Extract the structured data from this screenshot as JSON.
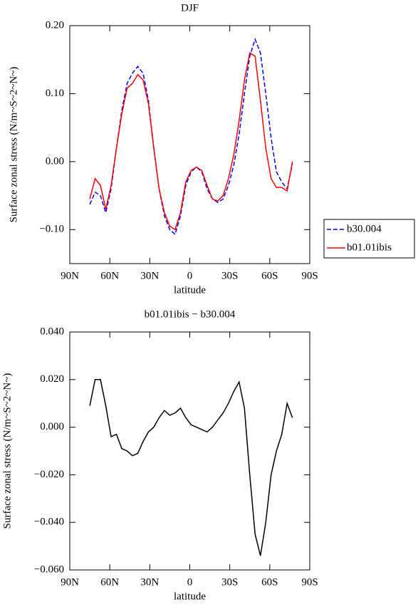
{
  "chart_data": [
    {
      "type": "line",
      "title": "DJF",
      "xlabel": "latitude",
      "ylabel": "Surface zonal stress (N/m~S~2~N~)",
      "x": [
        75,
        71,
        67,
        63,
        59,
        55,
        51,
        47,
        43,
        39,
        35,
        31,
        27,
        23,
        19,
        15,
        11,
        7,
        3,
        -1,
        -5,
        -9,
        -13,
        -17,
        -21,
        -25,
        -29,
        -33,
        -37,
        -41,
        -45,
        -49,
        -53,
        -57,
        -61,
        -65,
        -69,
        -73,
        -77
      ],
      "series": [
        {
          "name": "b30.004",
          "color": "#0000ff",
          "line_style": "dashed",
          "values": [
            -0.063,
            -0.045,
            -0.05,
            -0.075,
            -0.04,
            0.02,
            0.075,
            0.115,
            0.13,
            0.14,
            0.13,
            0.09,
            0.02,
            -0.04,
            -0.08,
            -0.1,
            -0.107,
            -0.08,
            -0.035,
            -0.015,
            -0.008,
            -0.015,
            -0.04,
            -0.055,
            -0.06,
            -0.055,
            -0.035,
            -0.005,
            0.04,
            0.1,
            0.155,
            0.18,
            0.16,
            0.1,
            0.035,
            -0.015,
            -0.03,
            -0.04,
            -0.003
          ]
        },
        {
          "name": "b01.01ibis",
          "color": "#ff0000",
          "line_style": "solid",
          "values": [
            -0.055,
            -0.025,
            -0.035,
            -0.07,
            -0.035,
            0.02,
            0.07,
            0.108,
            0.115,
            0.128,
            0.12,
            0.085,
            0.02,
            -0.04,
            -0.075,
            -0.095,
            -0.1,
            -0.075,
            -0.03,
            -0.013,
            -0.008,
            -0.013,
            -0.035,
            -0.055,
            -0.058,
            -0.05,
            -0.025,
            0.01,
            0.06,
            0.12,
            0.16,
            0.155,
            0.09,
            0.02,
            -0.025,
            -0.038,
            -0.038,
            -0.043,
            0.0
          ]
        }
      ],
      "xlim": [
        90,
        -90
      ],
      "xticks": [
        {
          "value": 90,
          "label": "90N"
        },
        {
          "value": 60,
          "label": "60N"
        },
        {
          "value": 30,
          "label": "30N"
        },
        0,
        {
          "value": -30,
          "label": "30S"
        },
        {
          "value": -60,
          "label": "60S"
        },
        {
          "value": -90,
          "label": "90S"
        }
      ],
      "ylim": [
        -0.15,
        0.2
      ],
      "yticks": [
        {
          "value": -0.1,
          "label": "−0.10"
        },
        {
          "value": 0,
          "label": "0.00"
        },
        {
          "value": 0.1,
          "label": "0.10"
        },
        {
          "value": 0.2,
          "label": "0.20"
        }
      ],
      "legend": "right"
    },
    {
      "type": "line",
      "title": "b01.01ibis − b30.004",
      "xlabel": "latitude",
      "ylabel": "Surface zonal stress (N/m~S~2~N~)",
      "x": [
        75,
        71,
        67,
        63,
        59,
        55,
        51,
        47,
        43,
        39,
        35,
        31,
        27,
        23,
        19,
        15,
        11,
        7,
        3,
        -1,
        -5,
        -9,
        -13,
        -17,
        -21,
        -25,
        -29,
        -33,
        -37,
        -41,
        -45,
        -49,
        -53,
        -57,
        -61,
        -65,
        -69,
        -73,
        -77
      ],
      "color": "#000000",
      "values": [
        0.009,
        0.02,
        0.02,
        0.009,
        -0.004,
        -0.003,
        -0.009,
        -0.01,
        -0.012,
        -0.011,
        -0.006,
        -0.002,
        0.0,
        0.004,
        0.007,
        0.005,
        0.006,
        0.008,
        0.004,
        0.001,
        0.0,
        -0.001,
        -0.002,
        0.0,
        0.003,
        0.006,
        0.01,
        0.015,
        0.019,
        0.008,
        -0.02,
        -0.045,
        -0.054,
        -0.04,
        -0.02,
        -0.01,
        -0.003,
        0.01,
        0.004
      ],
      "xlim": [
        90,
        -90
      ],
      "xticks": [
        {
          "value": 90,
          "label": "90N"
        },
        {
          "value": 60,
          "label": "60N"
        },
        {
          "value": 30,
          "label": "30N"
        },
        0,
        {
          "value": -30,
          "label": "30S"
        },
        {
          "value": -60,
          "label": "60S"
        },
        {
          "value": -90,
          "label": "90S"
        }
      ],
      "ylim": [
        -0.06,
        0.04
      ],
      "yticks": [
        {
          "value": -0.06,
          "label": "−0.060"
        },
        {
          "value": -0.04,
          "label": "−0.040"
        },
        {
          "value": -0.02,
          "label": "−0.020"
        },
        {
          "value": 0,
          "label": "0.000"
        },
        {
          "value": 0.02,
          "label": "0.020"
        },
        {
          "value": 0.04,
          "label": "0.040"
        }
      ]
    }
  ]
}
